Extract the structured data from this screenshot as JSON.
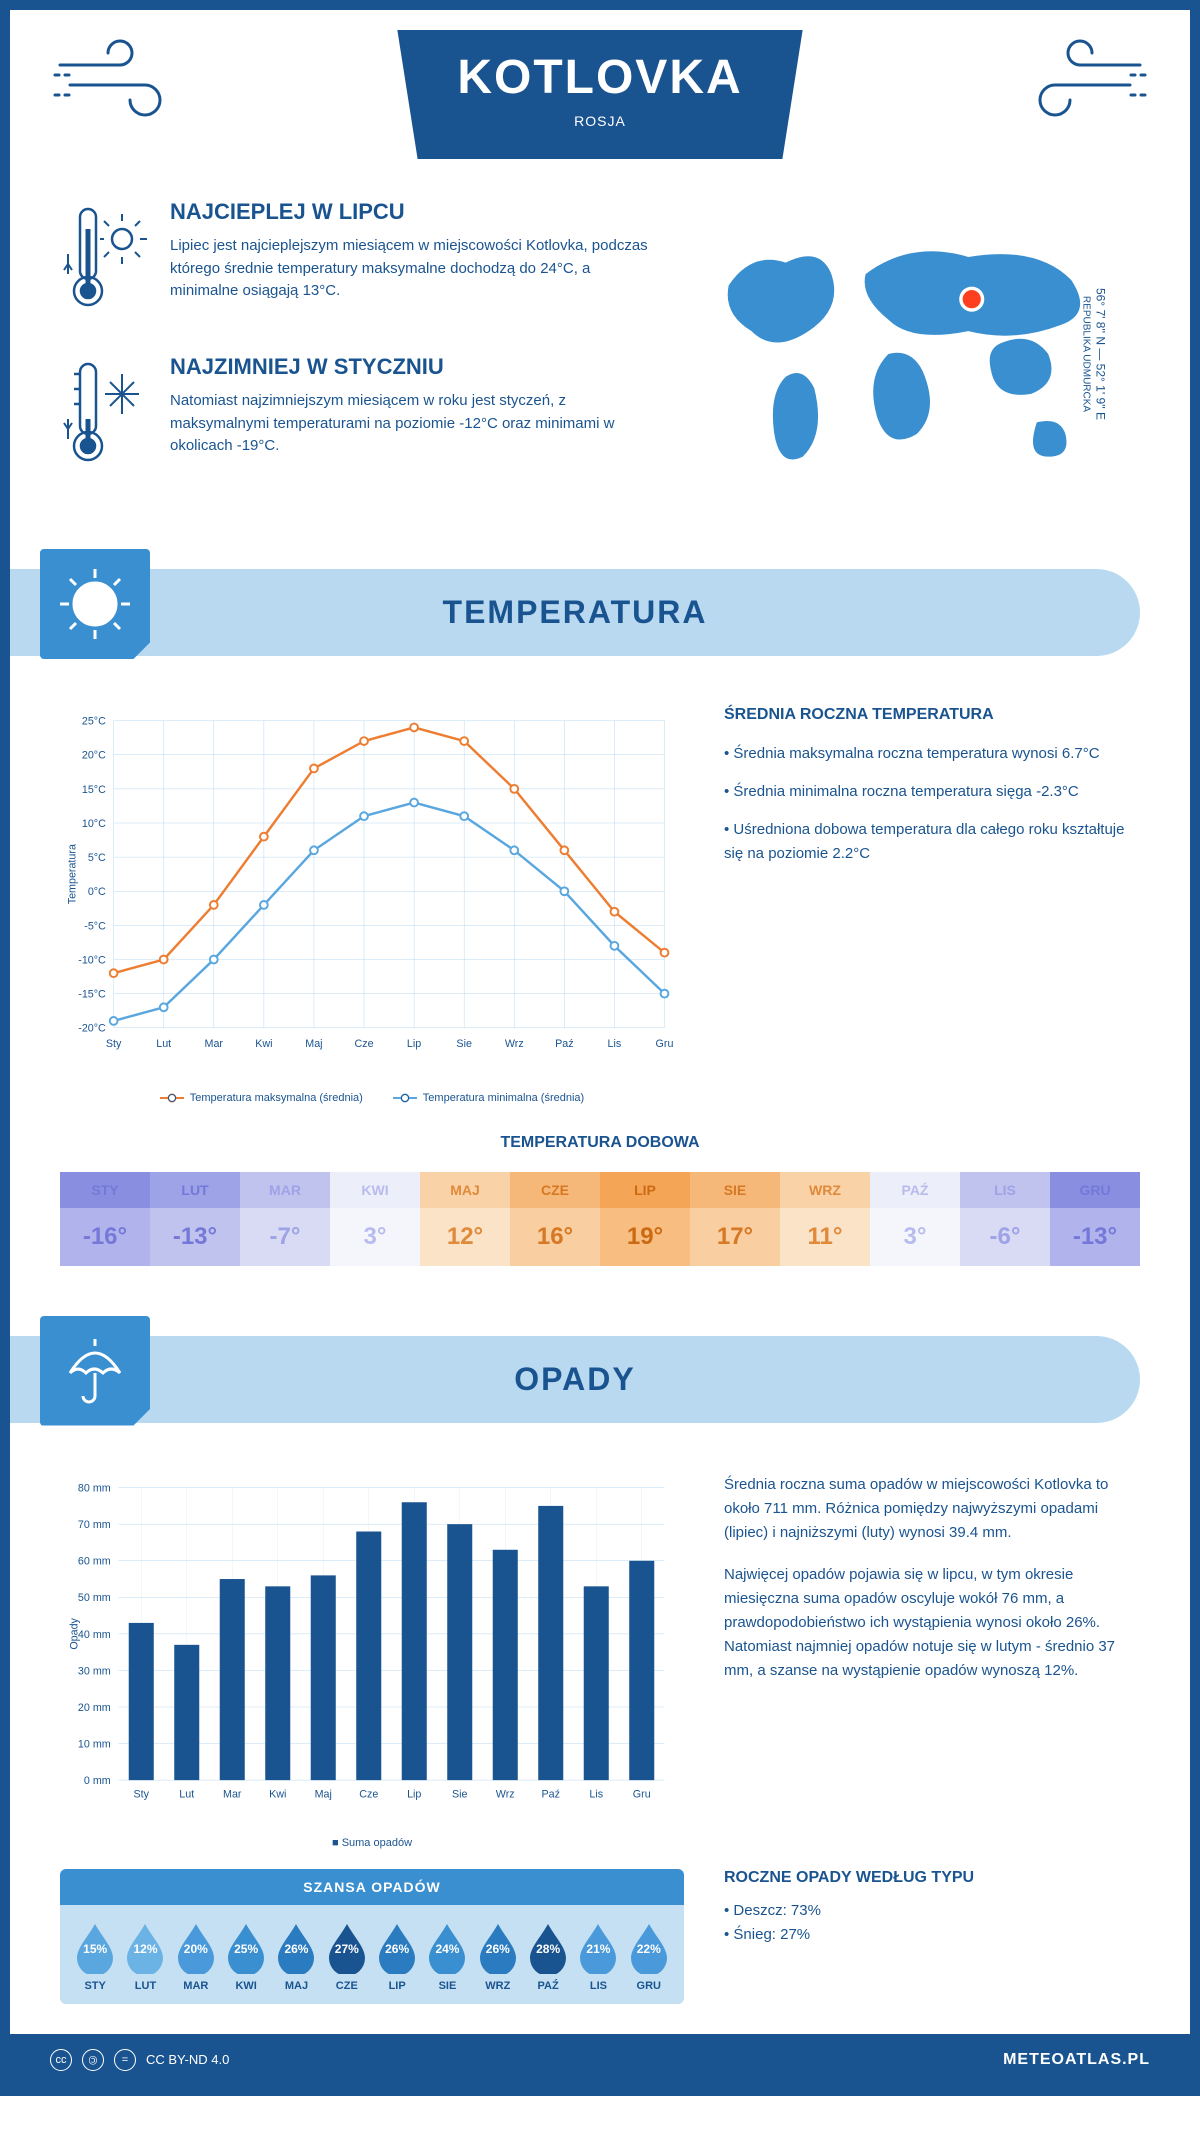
{
  "colors": {
    "primary": "#1a5490",
    "light_blue": "#b8d9f0",
    "mid_blue": "#3a8fd0",
    "pale_blue": "#c5e0f2",
    "orange": "#ed7d31",
    "line_blue": "#5aa7e0"
  },
  "header": {
    "title": "KOTLOVKA",
    "subtitle": "ROSJA"
  },
  "intro": {
    "hot": {
      "title": "NAJCIEPLEJ W LIPCU",
      "text": "Lipiec jest najcieplejszym miesiącem w miejscowości Kotlovka, podczas którego średnie temperatury maksymalne dochodzą do 24°C, a minimalne osiągają 13°C."
    },
    "cold": {
      "title": "NAJZIMNIEJ W STYCZNIU",
      "text": "Natomiast najzimniejszym miesiącem w roku jest styczeń, z maksymalnymi temperaturami na poziomie -12°C oraz minimami w okolicach -19°C."
    },
    "coords": "56° 7' 8'' N — 52° 1' 9'' E",
    "region": "REPUBLIKA UDMURCKA"
  },
  "temp_section": {
    "banner": "TEMPERATURA",
    "chart": {
      "type": "line",
      "months": [
        "Sty",
        "Lut",
        "Mar",
        "Kwi",
        "Maj",
        "Cze",
        "Lip",
        "Sie",
        "Wrz",
        "Paź",
        "Lis",
        "Gru"
      ],
      "y_label": "Temperatura",
      "y_min": -20,
      "y_max": 25,
      "y_step": 5,
      "series": [
        {
          "name": "Temperatura maksymalna (średnia)",
          "color": "#ed7d31",
          "values": [
            -12,
            -10,
            -2,
            8,
            18,
            22,
            24,
            22,
            15,
            6,
            -3,
            -9
          ]
        },
        {
          "name": "Temperatura minimalna (średnia)",
          "color": "#5aa7e0",
          "values": [
            -19,
            -17,
            -10,
            -2,
            6,
            11,
            13,
            11,
            6,
            0,
            -8,
            -15
          ]
        }
      ],
      "grid_color": "#b8d9f0",
      "background": "#ffffff"
    },
    "info": {
      "title": "ŚREDNIA ROCZNA TEMPERATURA",
      "bullets": [
        "• Średnia maksymalna roczna temperatura wynosi 6.7°C",
        "• Średnia minimalna roczna temperatura sięga -2.3°C",
        "• Uśredniona dobowa temperatura dla całego roku kształtuje się na poziomie 2.2°C"
      ]
    },
    "daily": {
      "title": "TEMPERATURA DOBOWA",
      "months": [
        "STY",
        "LUT",
        "MAR",
        "KWI",
        "MAJ",
        "CZE",
        "LIP",
        "SIE",
        "WRZ",
        "PAŹ",
        "LIS",
        "GRU"
      ],
      "values": [
        "-16°",
        "-13°",
        "-7°",
        "3°",
        "12°",
        "16°",
        "19°",
        "17°",
        "11°",
        "3°",
        "-6°",
        "-13°"
      ],
      "head_colors": [
        "#8a8ee0",
        "#9ea2e6",
        "#c0c3ee",
        "#eceef9",
        "#f9d2a8",
        "#f6b878",
        "#f4a556",
        "#f6b878",
        "#f9d2a8",
        "#eceef9",
        "#c0c3ee",
        "#8a8ee0"
      ],
      "body_colors": [
        "#b1b4ec",
        "#c0c3ee",
        "#d9daf4",
        "#f5f6fc",
        "#fbe3c8",
        "#f9ceA0",
        "#f7bd81",
        "#f9cea0",
        "#fbe3c8",
        "#f5f6fc",
        "#d9daf4",
        "#b1b4ec"
      ],
      "text_colors": [
        "#7478d8",
        "#7478d8",
        "#9ea2e6",
        "#b8bbee",
        "#e08a3a",
        "#d67824",
        "#cc6a14",
        "#d67824",
        "#e08a3a",
        "#b8bbee",
        "#9ea2e6",
        "#7478d8"
      ]
    }
  },
  "precip_section": {
    "banner": "OPADY",
    "chart": {
      "type": "bar",
      "months": [
        "Sty",
        "Lut",
        "Mar",
        "Kwi",
        "Maj",
        "Cze",
        "Lip",
        "Sie",
        "Wrz",
        "Paź",
        "Lis",
        "Gru"
      ],
      "y_label": "Opady",
      "y_min": 0,
      "y_max": 80,
      "y_step": 10,
      "y_suffix": " mm",
      "values": [
        43,
        37,
        55,
        53,
        56,
        68,
        76,
        70,
        63,
        75,
        53,
        60
      ],
      "bar_color": "#1a5490",
      "grid_color": "#b8d9f0",
      "legend": "Suma opadów"
    },
    "info": {
      "p1": "Średnia roczna suma opadów w miejscowości Kotlovka to około 711 mm. Różnica pomiędzy najwyższymi opadami (lipiec) i najniższymi (luty) wynosi 39.4 mm.",
      "p2": "Najwięcej opadów pojawia się w lipcu, w tym okresie miesięczna suma opadów oscyluje wokół 76 mm, a prawdopodobieństwo ich wystąpienia wynosi około 26%. Natomiast najmniej opadów notuje się w lutym - średnio 37 mm, a szanse na wystąpienie opadów wynoszą 12%."
    },
    "chance": {
      "title": "SZANSA OPADÓW",
      "months": [
        "STY",
        "LUT",
        "MAR",
        "KWI",
        "MAJ",
        "CZE",
        "LIP",
        "SIE",
        "WRZ",
        "PAŹ",
        "LIS",
        "GRU"
      ],
      "values": [
        "15%",
        "12%",
        "20%",
        "25%",
        "26%",
        "27%",
        "26%",
        "24%",
        "26%",
        "28%",
        "21%",
        "22%"
      ],
      "colors": [
        "#5aa7e0",
        "#6bb3e5",
        "#4a9adb",
        "#3a8fd0",
        "#2a7bc0",
        "#1a5490",
        "#2a7bc0",
        "#3a8fd0",
        "#2a7bc0",
        "#1a5490",
        "#4a9adb",
        "#4a9adb"
      ]
    },
    "by_type": {
      "title": "ROCZNE OPADY WEDŁUG TYPU",
      "items": [
        "• Deszcz: 73%",
        "• Śnieg: 27%"
      ]
    }
  },
  "footer": {
    "license": "CC BY-ND 4.0",
    "site": "METEOATLAS.PL"
  }
}
